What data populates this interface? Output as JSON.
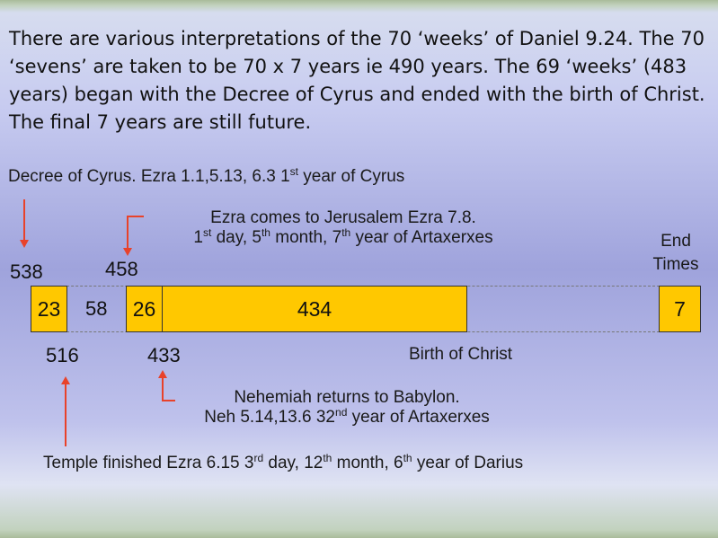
{
  "intro_text": "There are various interpretations of the 70 ‘weeks’ of Daniel 9.24. The 70 ‘sevens’ are taken to be 70 x 7 years ie 490 years. The 69 ‘weeks’ (483 years) began with the Decree of Cyrus and ended with the birth of Christ. The final 7 years are still future.",
  "decree": {
    "text": "Decree of Cyrus. Ezra 1.1,5.13, 6.3 1",
    "sup": "st",
    "tail": " year of Cyrus"
  },
  "ezra": {
    "line1": "Ezra comes to Jerusalem Ezra 7.8.",
    "l2_a": "1",
    "l2_sup1": "st",
    "l2_b": " day, 5",
    "l2_sup2": "th",
    "l2_c": " month, 7",
    "l2_sup3": "th",
    "l2_d": " year of Artaxerxes"
  },
  "end_times": {
    "line1": "End",
    "line2": "Times"
  },
  "years": {
    "y538": "538",
    "y458": "458",
    "y516": "516",
    "y433": "433"
  },
  "segments": {
    "s23": "23",
    "s58": "58",
    "s26": "26",
    "s434": "434",
    "s7": "7"
  },
  "birth": "Birth of Christ",
  "nehemiah": {
    "line1": "Nehemiah returns to Babylon.",
    "l2_a": "Neh 5.14,13.6  32",
    "l2_sup": "nd",
    "l2_b": " year of Artaxerxes"
  },
  "temple": {
    "a": "Temple finished  Ezra 6.15  3",
    "sup1": "rd",
    "b": " day, 12",
    "sup2": "th",
    "c": " month,  6",
    "sup3": "th",
    "d": " year of Darius"
  },
  "colors": {
    "segment_fill": "#ffc800",
    "arrow": "#e8422a"
  }
}
